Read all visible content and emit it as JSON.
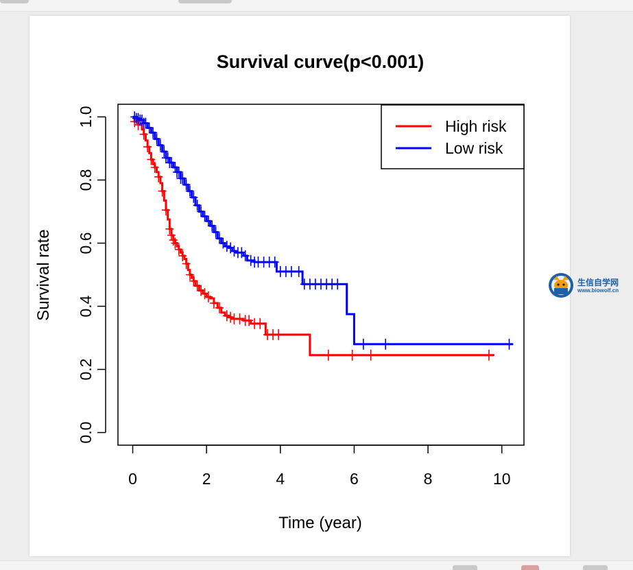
{
  "logo": {
    "name": "生信自学网",
    "url": "www.biowolf.cn"
  },
  "chart_data": {
    "type": "line",
    "title": "Survival curve(p<0.001)",
    "xlabel": "Time (year)",
    "ylabel": "Survival rate",
    "xlim": [
      -0.4,
      10.6
    ],
    "ylim": [
      -0.04,
      1.04
    ],
    "xticks": [
      0,
      2,
      4,
      6,
      8,
      10
    ],
    "yticks": [
      0.0,
      0.2,
      0.4,
      0.6,
      0.8,
      1.0
    ],
    "grid": false,
    "legend_position": "top-right",
    "series": [
      {
        "name": "High risk",
        "color": "#ff0000",
        "steps": [
          [
            0,
            1.0
          ],
          [
            0.05,
            0.985
          ],
          [
            0.15,
            0.975
          ],
          [
            0.25,
            0.96
          ],
          [
            0.3,
            0.945
          ],
          [
            0.35,
            0.925
          ],
          [
            0.4,
            0.905
          ],
          [
            0.45,
            0.885
          ],
          [
            0.5,
            0.865
          ],
          [
            0.55,
            0.85
          ],
          [
            0.6,
            0.84
          ],
          [
            0.65,
            0.825
          ],
          [
            0.7,
            0.81
          ],
          [
            0.75,
            0.79
          ],
          [
            0.8,
            0.765
          ],
          [
            0.85,
            0.735
          ],
          [
            0.9,
            0.705
          ],
          [
            0.95,
            0.675
          ],
          [
            1.0,
            0.645
          ],
          [
            1.05,
            0.625
          ],
          [
            1.1,
            0.61
          ],
          [
            1.15,
            0.6
          ],
          [
            1.2,
            0.59
          ],
          [
            1.25,
            0.58
          ],
          [
            1.3,
            0.57
          ],
          [
            1.35,
            0.56
          ],
          [
            1.4,
            0.55
          ],
          [
            1.45,
            0.535
          ],
          [
            1.5,
            0.515
          ],
          [
            1.55,
            0.5
          ],
          [
            1.6,
            0.49
          ],
          [
            1.65,
            0.48
          ],
          [
            1.7,
            0.465
          ],
          [
            1.8,
            0.45
          ],
          [
            1.9,
            0.44
          ],
          [
            2.0,
            0.43
          ],
          [
            2.1,
            0.425
          ],
          [
            2.2,
            0.41
          ],
          [
            2.3,
            0.395
          ],
          [
            2.4,
            0.38
          ],
          [
            2.5,
            0.37
          ],
          [
            2.6,
            0.365
          ],
          [
            2.7,
            0.36
          ],
          [
            3.0,
            0.355
          ],
          [
            3.2,
            0.345
          ],
          [
            3.6,
            0.31
          ],
          [
            4.8,
            0.245
          ],
          [
            9.8,
            0.245
          ]
        ],
        "censor_x": [
          0.05,
          0.15,
          0.3,
          0.4,
          0.5,
          0.6,
          0.7,
          0.8,
          0.9,
          1.0,
          1.05,
          1.1,
          1.15,
          1.25,
          1.35,
          1.45,
          1.55,
          1.65,
          1.75,
          1.85,
          1.95,
          2.05,
          2.2,
          2.35,
          2.55,
          2.65,
          2.75,
          2.9,
          3.05,
          3.15,
          3.3,
          3.45,
          3.65,
          3.8,
          3.95,
          5.3,
          5.95,
          6.45,
          9.65
        ]
      },
      {
        "name": "Low risk",
        "color": "#0000ff",
        "steps": [
          [
            0,
            1.0
          ],
          [
            0.1,
            0.995
          ],
          [
            0.2,
            0.99
          ],
          [
            0.3,
            0.98
          ],
          [
            0.4,
            0.965
          ],
          [
            0.5,
            0.95
          ],
          [
            0.6,
            0.93
          ],
          [
            0.7,
            0.91
          ],
          [
            0.8,
            0.89
          ],
          [
            0.9,
            0.87
          ],
          [
            1.0,
            0.855
          ],
          [
            1.1,
            0.84
          ],
          [
            1.2,
            0.825
          ],
          [
            1.3,
            0.805
          ],
          [
            1.4,
            0.785
          ],
          [
            1.5,
            0.765
          ],
          [
            1.6,
            0.745
          ],
          [
            1.7,
            0.72
          ],
          [
            1.8,
            0.7
          ],
          [
            1.9,
            0.685
          ],
          [
            2.0,
            0.67
          ],
          [
            2.1,
            0.655
          ],
          [
            2.2,
            0.635
          ],
          [
            2.3,
            0.615
          ],
          [
            2.4,
            0.6
          ],
          [
            2.5,
            0.59
          ],
          [
            2.6,
            0.585
          ],
          [
            2.7,
            0.575
          ],
          [
            2.8,
            0.57
          ],
          [
            3.0,
            0.56
          ],
          [
            3.1,
            0.545
          ],
          [
            3.3,
            0.54
          ],
          [
            3.9,
            0.51
          ],
          [
            4.6,
            0.47
          ],
          [
            5.8,
            0.375
          ],
          [
            6.0,
            0.28
          ],
          [
            10.3,
            0.28
          ]
        ],
        "censor_x": [
          0.05,
          0.1,
          0.15,
          0.2,
          0.25,
          0.3,
          0.35,
          0.45,
          0.55,
          0.65,
          0.75,
          0.85,
          0.9,
          0.95,
          1.0,
          1.05,
          1.15,
          1.2,
          1.25,
          1.3,
          1.35,
          1.45,
          1.55,
          1.65,
          1.75,
          1.85,
          1.95,
          2.05,
          2.15,
          2.25,
          2.35,
          2.45,
          2.55,
          2.65,
          2.75,
          2.85,
          2.95,
          3.05,
          3.2,
          3.3,
          3.4,
          3.55,
          3.7,
          3.85,
          4.0,
          4.15,
          4.3,
          4.5,
          4.65,
          4.8,
          4.95,
          5.1,
          5.25,
          5.4,
          5.55,
          6.25,
          6.85,
          10.2
        ]
      }
    ]
  }
}
